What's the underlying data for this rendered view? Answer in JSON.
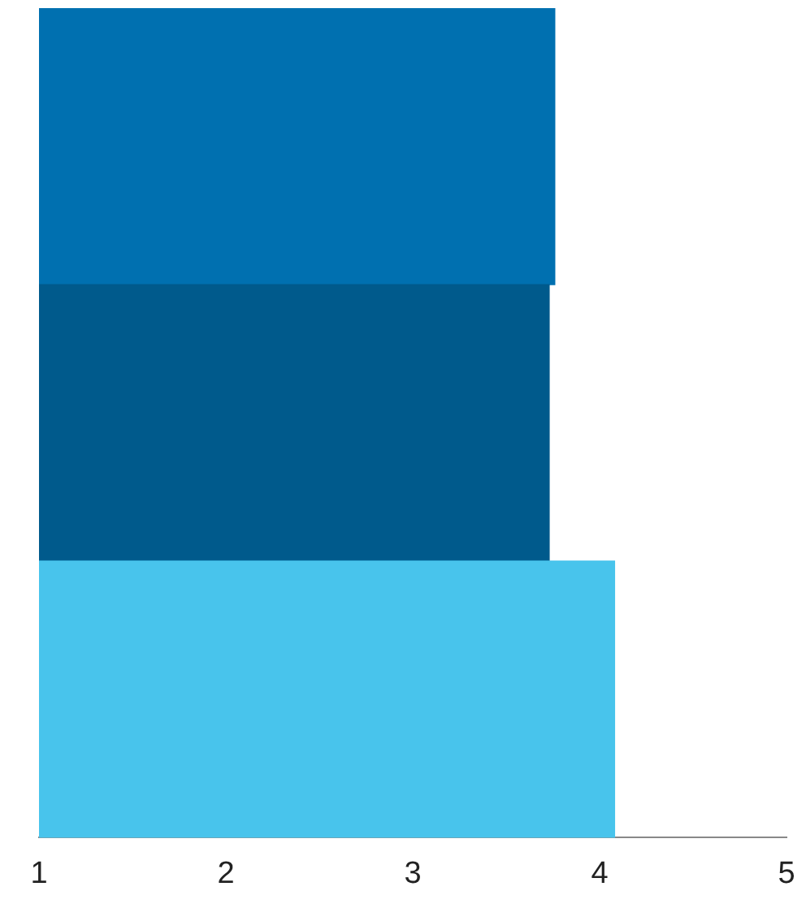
{
  "chart_data": {
    "type": "bar",
    "orientation": "horizontal",
    "categories": [
      null,
      null,
      null
    ],
    "values": [
      3.76,
      3.73,
      4.08
    ],
    "colors": [
      "#0070b0",
      "#005a8c",
      "#48c4ec"
    ],
    "xlim": [
      1,
      5
    ],
    "xticks": [
      1,
      2,
      3,
      4,
      5
    ],
    "tick_labels": "x",
    "grid": false,
    "legend": false
  }
}
